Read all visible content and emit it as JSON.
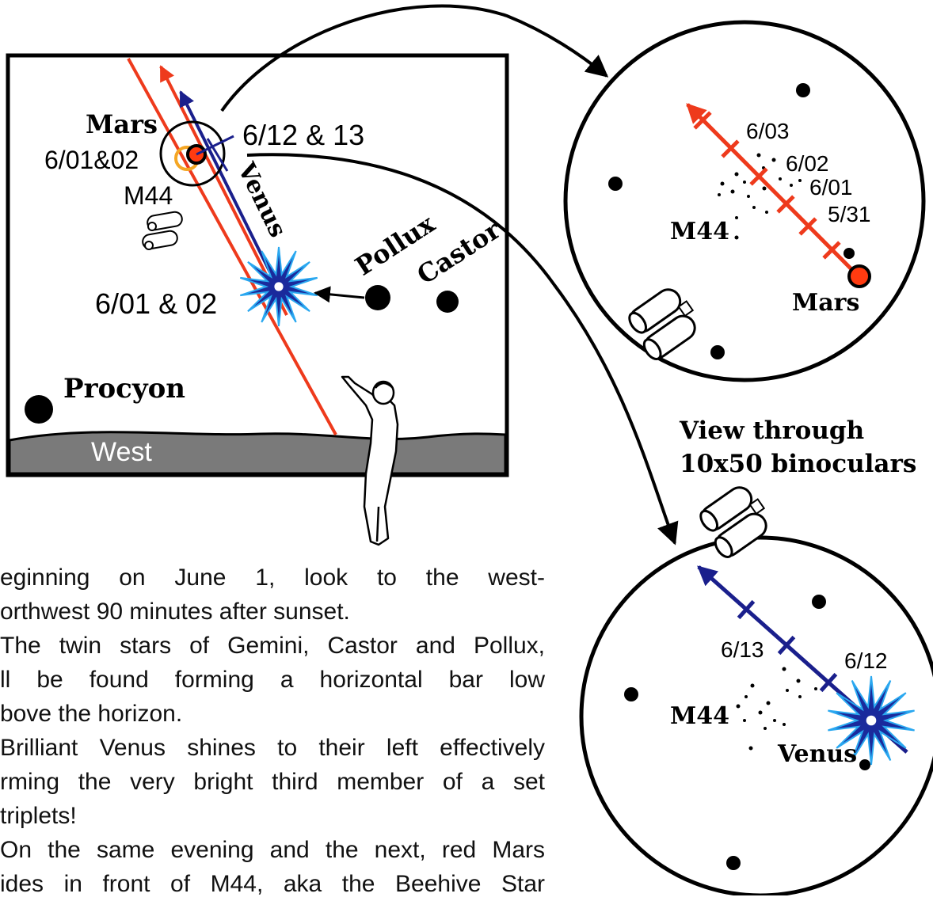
{
  "colors": {
    "mars_path": "#ee3a1c",
    "venus_path": "#1a1f8c",
    "ground": "#7a7a7a",
    "mars_fill": "#ff3b10",
    "m44_ring": "#f5a623",
    "venus_light": "#2aa8f0"
  },
  "sky_box": {
    "mars_label": "Mars",
    "mars_dates": "6/01&02",
    "m44_label": "M44",
    "conjunction_dates": "6/12 & 13",
    "venus_label": "Venus",
    "pollux_label": "Pollux",
    "castor_label": "Castor",
    "venus_dates": "6/01 & 02",
    "procyon_label": "Procyon",
    "horizon_label": "West"
  },
  "mars_view": {
    "dates": [
      "6/03",
      "6/02",
      "6/01",
      "5/31"
    ],
    "m44_label": "M44",
    "mars_label": "Mars"
  },
  "caption": {
    "line1": "View through",
    "line2": "10x50 binoculars"
  },
  "venus_view": {
    "dates": [
      "6/13",
      "6/12"
    ],
    "m44_label": "M44",
    "venus_label": "Venus"
  },
  "text": {
    "lines": [
      "eginning on June 1, look to the west-",
      "orthwest 90 minutes after sunset.",
      "The twin stars of Gemini, Castor and Pollux,",
      "ll be found forming a horizontal bar low",
      "bove the horizon.",
      "Brilliant Venus shines to their left effectively",
      "rming the very bright third member of a set",
      " triplets!",
      "On the same evening and the next, red Mars",
      "ides in front of M44, aka the Beehive Star"
    ]
  }
}
